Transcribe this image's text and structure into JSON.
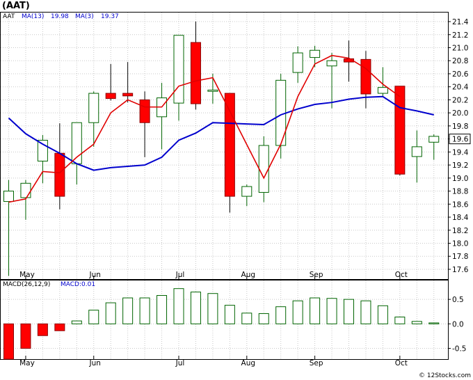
{
  "ticker": "(AAT)",
  "credit": "© 12Stocks.com",
  "colors": {
    "up_fill": "#ffffff",
    "up_stroke": "#006400",
    "down_fill": "#ff0000",
    "down_stroke": "#8b0000",
    "ma13": "#0000cd",
    "ma3": "#e00000",
    "macd_up": "#006400",
    "macd_down": "#ff0000",
    "label_blue": "#0000cd"
  },
  "chart_data": [
    {
      "type": "candlestick",
      "legend": [
        {
          "name": "AAT",
          "value": "",
          "color": "#000000"
        },
        {
          "name": "MA(13)",
          "value": "19.98",
          "color": "#0000cd"
        },
        {
          "name": "MA(3)",
          "value": "19.37",
          "color": "#0000cd"
        }
      ],
      "x_labels": [
        {
          "label": "May",
          "index": 1
        },
        {
          "label": "Jun",
          "index": 5
        },
        {
          "label": "Jul",
          "index": 10
        },
        {
          "label": "Aug",
          "index": 14
        },
        {
          "label": "Sep",
          "index": 18
        },
        {
          "label": "Oct",
          "index": 23
        }
      ],
      "ylim": [
        17.45,
        21.55
      ],
      "yticks": [
        "17.6",
        "17.8",
        "18.0",
        "18.2",
        "18.4",
        "18.6",
        "18.8",
        "19.0",
        "19.2",
        "19.4",
        "19.6",
        "19.8",
        "20.0",
        "20.2",
        "20.4",
        "20.6",
        "20.8",
        "21.0",
        "21.2",
        "21.4"
      ],
      "last_price": "19.6",
      "candles": [
        {
          "o": 18.64,
          "h": 18.97,
          "l": 17.5,
          "c": 18.8
        },
        {
          "o": 18.7,
          "h": 18.97,
          "l": 18.36,
          "c": 18.92
        },
        {
          "o": 19.26,
          "h": 19.66,
          "l": 18.92,
          "c": 19.58
        },
        {
          "o": 19.38,
          "h": 19.84,
          "l": 18.52,
          "c": 18.72
        },
        {
          "o": 19.22,
          "h": 19.83,
          "l": 18.9,
          "c": 19.85
        },
        {
          "o": 19.85,
          "h": 20.33,
          "l": 19.48,
          "c": 20.3
        },
        {
          "o": 20.3,
          "h": 20.75,
          "l": 20.19,
          "c": 20.22
        },
        {
          "o": 20.3,
          "h": 20.78,
          "l": 20.16,
          "c": 20.26
        },
        {
          "o": 20.2,
          "h": 20.33,
          "l": 19.32,
          "c": 19.85
        },
        {
          "o": 19.94,
          "h": 20.46,
          "l": 19.44,
          "c": 20.23
        },
        {
          "o": 20.15,
          "h": 21.19,
          "l": 19.88,
          "c": 21.19
        },
        {
          "o": 21.08,
          "h": 21.4,
          "l": 20.05,
          "c": 20.14
        },
        {
          "o": 20.33,
          "h": 20.6,
          "l": 20.14,
          "c": 20.35
        },
        {
          "o": 20.3,
          "h": 20.3,
          "l": 18.47,
          "c": 18.72
        },
        {
          "o": 18.72,
          "h": 18.9,
          "l": 18.57,
          "c": 18.87
        },
        {
          "o": 18.78,
          "h": 19.64,
          "l": 18.63,
          "c": 19.5
        },
        {
          "o": 19.5,
          "h": 20.6,
          "l": 19.3,
          "c": 20.5
        },
        {
          "o": 20.62,
          "h": 21.02,
          "l": 20.46,
          "c": 20.92
        },
        {
          "o": 20.85,
          "h": 21.03,
          "l": 20.7,
          "c": 20.96
        },
        {
          "o": 20.72,
          "h": 20.92,
          "l": 20.07,
          "c": 20.8
        },
        {
          "o": 20.83,
          "h": 21.11,
          "l": 20.48,
          "c": 20.78
        },
        {
          "o": 20.82,
          "h": 20.95,
          "l": 20.07,
          "c": 20.29
        },
        {
          "o": 20.3,
          "h": 20.7,
          "l": 20.25,
          "c": 20.39
        },
        {
          "o": 20.41,
          "h": 20.41,
          "l": 19.04,
          "c": 19.06
        },
        {
          "o": 19.33,
          "h": 19.73,
          "l": 18.93,
          "c": 19.48
        },
        {
          "o": 19.55,
          "h": 19.67,
          "l": 19.28,
          "c": 19.64
        }
      ],
      "ma13": [
        18.63,
        18.68,
        19.1,
        19.08,
        19.32,
        19.52,
        20.0,
        20.2,
        20.09,
        20.09,
        20.41,
        20.49,
        20.54,
        null,
        null,
        19.0,
        19.52,
        20.25,
        20.75,
        20.88,
        20.84,
        20.68,
        20.44,
        20.25,
        null,
        null
      ],
      "ma3": [
        19.92,
        19.68,
        19.52,
        19.38,
        19.22,
        19.12,
        19.16,
        19.18,
        19.2,
        19.32,
        19.58,
        19.69,
        19.85,
        19.84,
        19.83,
        19.82,
        19.97,
        20.06,
        20.13,
        20.16,
        20.21,
        20.24,
        20.25,
        20.08,
        20.03,
        19.97
      ]
    },
    {
      "type": "bar",
      "legend": [
        {
          "name": "MACD(26,12,9)",
          "color": "#000000"
        },
        {
          "name": "MACD:0.01",
          "color": "#0000cd"
        }
      ],
      "ylim": [
        -0.72,
        0.9
      ],
      "yticks": [
        "0.5",
        "0.0",
        "-0.5"
      ],
      "x_labels": [
        {
          "label": "May",
          "index": 1
        },
        {
          "label": "Jun",
          "index": 5
        },
        {
          "label": "Jul",
          "index": 10
        },
        {
          "label": "Aug",
          "index": 14
        },
        {
          "label": "Sep",
          "index": 18
        },
        {
          "label": "Oct",
          "index": 23
        }
      ],
      "values": [
        -0.72,
        -0.5,
        -0.24,
        -0.14,
        0.06,
        0.28,
        0.43,
        0.53,
        0.53,
        0.58,
        0.72,
        0.65,
        0.62,
        0.38,
        0.22,
        0.21,
        0.35,
        0.47,
        0.53,
        0.52,
        0.5,
        0.47,
        0.37,
        0.14,
        0.05,
        0.02
      ]
    }
  ]
}
